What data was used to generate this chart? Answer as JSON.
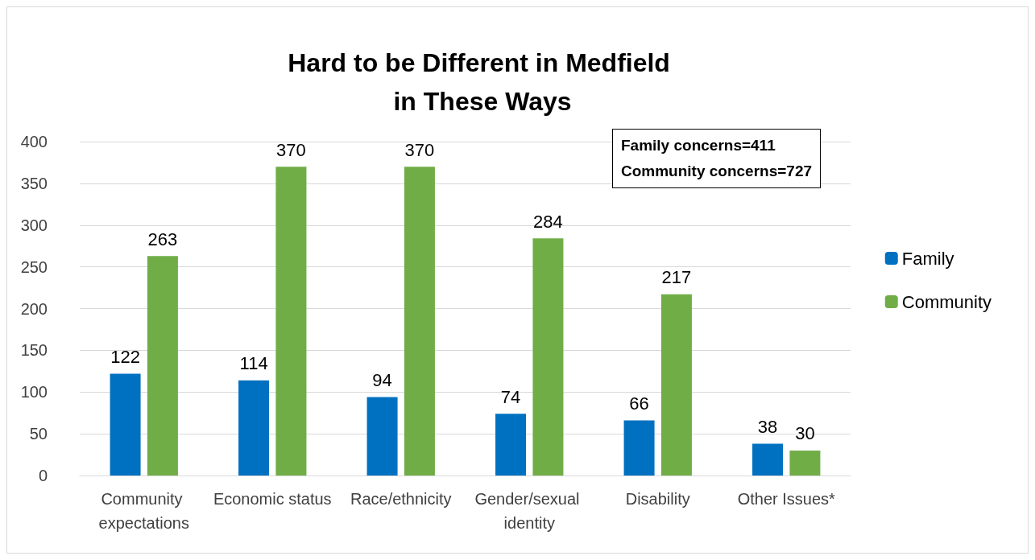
{
  "chart_data": {
    "type": "bar",
    "title": "Hard to be Different in Medfield in These Ways",
    "categories": [
      "Community expectations",
      "Economic status",
      "Race/ethnicity",
      "Gender/sexual identity",
      "Disability",
      "Other Issues*"
    ],
    "series": [
      {
        "name": "Family",
        "color": "#0070c0",
        "values": [
          122,
          114,
          94,
          74,
          66,
          38
        ]
      },
      {
        "name": "Community",
        "color": "#70ad47",
        "values": [
          263,
          370,
          370,
          284,
          217,
          30
        ]
      }
    ],
    "ylim": [
      0,
      400
    ],
    "yticks": [
      0,
      50,
      100,
      150,
      200,
      250,
      300,
      350,
      400
    ],
    "grid": "y",
    "legend": "right",
    "data_labels": true,
    "annotations": [
      "Family concerns=411",
      "Community concerns=727"
    ]
  }
}
